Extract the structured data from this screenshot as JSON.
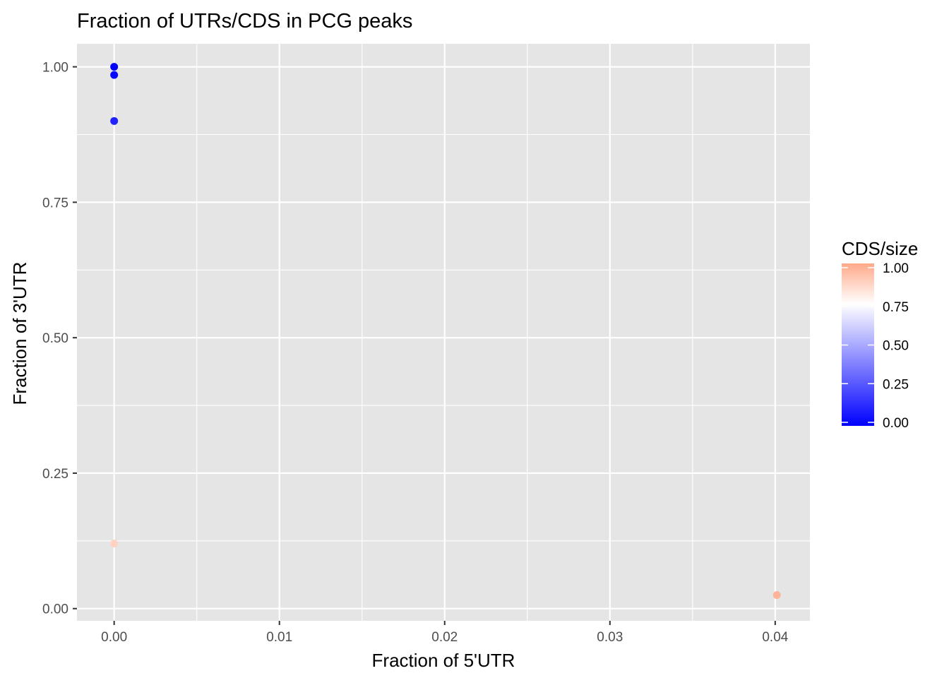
{
  "chart_data": {
    "type": "scatter",
    "title": "Fraction of UTRs/CDS in PCG peaks",
    "xlabel": "Fraction of 5'UTR",
    "ylabel": "Fraction of 3'UTR",
    "xlim": [
      -0.00225,
      0.0421
    ],
    "ylim": [
      -0.0225,
      1.0425
    ],
    "x_ticks": [
      0.0,
      0.01,
      0.02,
      0.03,
      0.04
    ],
    "x_tick_labels": [
      "0.00",
      "0.01",
      "0.02",
      "0.03",
      "0.04"
    ],
    "y_ticks": [
      0.0,
      0.25,
      0.5,
      0.75,
      1.0
    ],
    "y_tick_labels": [
      "0.00",
      "0.25",
      "0.50",
      "0.75",
      "1.00"
    ],
    "grid": true,
    "panel_background": "#e5e5e5",
    "grid_color": "#ffffff",
    "points": [
      {
        "x": 0.0,
        "y": 1.0,
        "cds_size": 0.0
      },
      {
        "x": 0.0,
        "y": 0.985,
        "cds_size": 0.02
      },
      {
        "x": 0.0,
        "y": 0.9,
        "cds_size": 0.1
      },
      {
        "x": 0.0,
        "y": 0.12,
        "cds_size": 0.88
      },
      {
        "x": 0.0401,
        "y": 0.025,
        "cds_size": 0.97
      }
    ],
    "color_scale": {
      "title": "CDS/size",
      "placement": "right",
      "low_color": "#0000ff",
      "mid_color": "#ffffff",
      "high_color": "#ffa98a",
      "midpoint": 0.75,
      "range": [
        0.0,
        1.0
      ],
      "breaks": [
        0.0,
        0.25,
        0.5,
        0.75,
        1.0
      ],
      "break_labels": [
        "0.00",
        "0.25",
        "0.50",
        "0.75",
        "1.00"
      ]
    }
  }
}
